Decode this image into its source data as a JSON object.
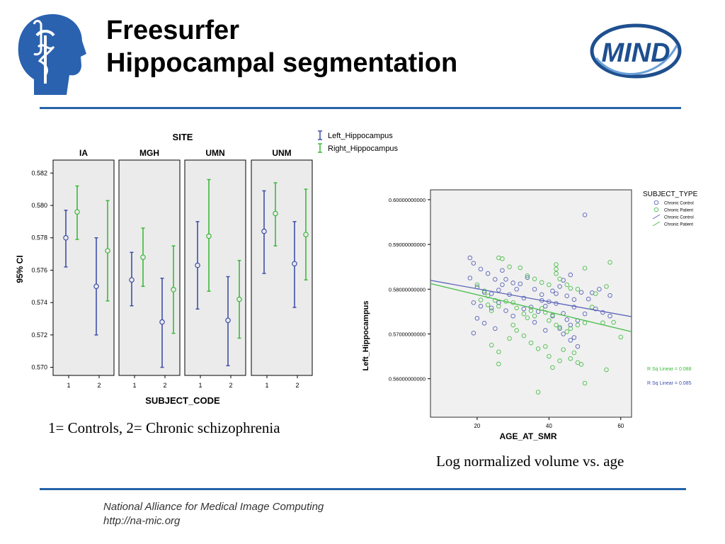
{
  "slide": {
    "title_line1": "Freesurfer",
    "title_line2": "Hippocampal segmentation",
    "logo_text": "MIND",
    "caption_left": "1= Controls, 2= Chronic schizophrenia",
    "caption_right": "Log normalized volume vs. age",
    "footer_line1": "National Alliance for Medical Image Computing",
    "footer_line2": "http://na-mic.org",
    "accent_color": "#2563a9"
  },
  "chart_data": [
    {
      "type": "errorbar",
      "title": "SITE",
      "xlabel": "SUBJECT_CODE",
      "ylabel": "95% CI",
      "ylim": [
        0.5695,
        0.5828
      ],
      "yticks": [
        0.57,
        0.572,
        0.574,
        0.576,
        0.578,
        0.58,
        0.582
      ],
      "ytick_labels": [
        "0.570",
        "0.572",
        "0.574",
        "0.576",
        "0.578",
        "0.580",
        "0.582"
      ],
      "categories": [
        "1",
        "2"
      ],
      "legend_position": "top-right",
      "series_names": [
        "Left_Hippocampus",
        "Right_Hippocampus"
      ],
      "series_colors": [
        "#3f4fa8",
        "#3db83d"
      ],
      "panels": [
        {
          "name": "IA",
          "left": [
            {
              "mean": 0.578,
              "lo": 0.5762,
              "hi": 0.5797
            },
            {
              "mean": 0.575,
              "lo": 0.572,
              "hi": 0.578
            }
          ],
          "right": [
            {
              "mean": 0.5796,
              "lo": 0.5779,
              "hi": 0.5812
            },
            {
              "mean": 0.5772,
              "lo": 0.5741,
              "hi": 0.5803
            }
          ]
        },
        {
          "name": "MGH",
          "left": [
            {
              "mean": 0.5754,
              "lo": 0.5738,
              "hi": 0.5771
            },
            {
              "mean": 0.5728,
              "lo": 0.57,
              "hi": 0.5755
            }
          ],
          "right": [
            {
              "mean": 0.5768,
              "lo": 0.575,
              "hi": 0.5786
            },
            {
              "mean": 0.5748,
              "lo": 0.5721,
              "hi": 0.5775
            }
          ]
        },
        {
          "name": "UMN",
          "left": [
            {
              "mean": 0.5763,
              "lo": 0.5736,
              "hi": 0.579
            },
            {
              "mean": 0.5729,
              "lo": 0.5701,
              "hi": 0.5756
            }
          ],
          "right": [
            {
              "mean": 0.5781,
              "lo": 0.5747,
              "hi": 0.5816
            },
            {
              "mean": 0.5742,
              "lo": 0.5718,
              "hi": 0.5766
            }
          ]
        },
        {
          "name": "UNM",
          "left": [
            {
              "mean": 0.5784,
              "lo": 0.5758,
              "hi": 0.5809
            },
            {
              "mean": 0.5764,
              "lo": 0.5737,
              "hi": 0.579
            }
          ],
          "right": [
            {
              "mean": 0.5795,
              "lo": 0.5775,
              "hi": 0.5814
            },
            {
              "mean": 0.5782,
              "lo": 0.5754,
              "hi": 0.581
            }
          ]
        }
      ]
    },
    {
      "type": "scatter",
      "xlabel": "AGE_AT_SMR",
      "ylabel": "Left_Hippocampus",
      "xlim": [
        7,
        63
      ],
      "ylim": [
        0.5514,
        0.6022
      ],
      "xticks": [
        20,
        40,
        60
      ],
      "yticks": [
        0.56,
        0.57,
        0.58,
        0.59,
        0.6
      ],
      "ytick_labels": [
        "0.56000000000",
        "0.57000000000",
        "0.58000000000",
        "0.59000000000",
        "0.60000000000"
      ],
      "legend_title": "SUBJECT_TYPE",
      "legend_position": "right",
      "legend_items": [
        "Chronic Control",
        "Chronic Patient",
        "Chronic Control",
        "Chronic Patient"
      ],
      "r2_labels": [
        {
          "text": "R Sq Linear = 0.088",
          "color": "#3db83d"
        },
        {
          "text": "R Sq Linear = 0.085",
          "color": "#3f4fa8"
        }
      ],
      "series": [
        {
          "name": "Chronic Control",
          "color": "#5b64b8",
          "fit": {
            "intercept": 0.583,
            "slope": -0.000145
          },
          "points": [
            [
              18,
              0.587
            ],
            [
              19,
              0.5858
            ],
            [
              21,
              0.5845
            ],
            [
              23,
              0.5835
            ],
            [
              25,
              0.5822
            ],
            [
              27,
              0.5842
            ],
            [
              28,
              0.5822
            ],
            [
              30,
              0.5814
            ],
            [
              31,
              0.58
            ],
            [
              18,
              0.5825
            ],
            [
              20,
              0.5805
            ],
            [
              22,
              0.5793
            ],
            [
              24,
              0.579
            ],
            [
              26,
              0.5798
            ],
            [
              29,
              0.5788
            ],
            [
              32,
              0.5812
            ],
            [
              34,
              0.5826
            ],
            [
              36,
              0.58
            ],
            [
              38,
              0.5788
            ],
            [
              40,
              0.5772
            ],
            [
              41,
              0.5796
            ],
            [
              43,
              0.5806
            ],
            [
              44,
              0.582
            ],
            [
              46,
              0.5832
            ],
            [
              45,
              0.5785
            ],
            [
              47,
              0.5777
            ],
            [
              49,
              0.5793
            ],
            [
              51,
              0.5778
            ],
            [
              52,
              0.5792
            ],
            [
              54,
              0.58
            ],
            [
              57,
              0.5786
            ],
            [
              19,
              0.577
            ],
            [
              21,
              0.5762
            ],
            [
              24,
              0.5758
            ],
            [
              26,
              0.577
            ],
            [
              28,
              0.5752
            ],
            [
              30,
              0.574
            ],
            [
              33,
              0.5756
            ],
            [
              35,
              0.576
            ],
            [
              37,
              0.575
            ],
            [
              39,
              0.5762
            ],
            [
              41,
              0.574
            ],
            [
              42,
              0.5768
            ],
            [
              44,
              0.5746
            ],
            [
              45,
              0.5732
            ],
            [
              46,
              0.572
            ],
            [
              48,
              0.573
            ],
            [
              50,
              0.5745
            ],
            [
              53,
              0.5756
            ],
            [
              55,
              0.5748
            ],
            [
              57,
              0.574
            ],
            [
              20,
              0.5735
            ],
            [
              22,
              0.5724
            ],
            [
              25,
              0.5712
            ],
            [
              36,
              0.5726
            ],
            [
              39,
              0.5708
            ],
            [
              43,
              0.5712
            ],
            [
              44,
              0.57
            ],
            [
              46,
              0.5686
            ],
            [
              47,
              0.5692
            ],
            [
              48,
              0.5672
            ],
            [
              19,
              0.5702
            ],
            [
              50,
              0.5966
            ],
            [
              47,
              0.576
            ],
            [
              42,
              0.579
            ],
            [
              38,
              0.5775
            ],
            [
              33,
              0.578
            ],
            [
              27,
              0.581
            ]
          ]
        },
        {
          "name": "Chronic Patient",
          "color": "#4cbf4c",
          "fit": {
            "intercept": 0.5826,
            "slope": -0.000192
          },
          "points": [
            [
              20,
              0.581
            ],
            [
              22,
              0.5796
            ],
            [
              23,
              0.5785
            ],
            [
              25,
              0.5775
            ],
            [
              26,
              0.587
            ],
            [
              27,
              0.5868
            ],
            [
              29,
              0.585
            ],
            [
              32,
              0.5848
            ],
            [
              34,
              0.583
            ],
            [
              36,
              0.5823
            ],
            [
              38,
              0.5815
            ],
            [
              40,
              0.581
            ],
            [
              42,
              0.5855
            ],
            [
              42,
              0.5845
            ],
            [
              42,
              0.5835
            ],
            [
              43,
              0.5823
            ],
            [
              45,
              0.581
            ],
            [
              46,
              0.5802
            ],
            [
              48,
              0.58
            ],
            [
              50,
              0.5847
            ],
            [
              53,
              0.579
            ],
            [
              56,
              0.5806
            ],
            [
              57,
              0.586
            ],
            [
              21,
              0.5776
            ],
            [
              23,
              0.5765
            ],
            [
              24,
              0.5752
            ],
            [
              26,
              0.5762
            ],
            [
              28,
              0.5773
            ],
            [
              30,
              0.577
            ],
            [
              31,
              0.5758
            ],
            [
              33,
              0.5745
            ],
            [
              35,
              0.5752
            ],
            [
              36,
              0.574
            ],
            [
              38,
              0.5757
            ],
            [
              39,
              0.5748
            ],
            [
              40,
              0.573
            ],
            [
              41,
              0.5742
            ],
            [
              42,
              0.572
            ],
            [
              43,
              0.5715
            ],
            [
              45,
              0.5705
            ],
            [
              46,
              0.5712
            ],
            [
              48,
              0.572
            ],
            [
              50,
              0.5725
            ],
            [
              52,
              0.576
            ],
            [
              55,
              0.5725
            ],
            [
              58,
              0.5726
            ],
            [
              60,
              0.5693
            ],
            [
              24,
              0.5675
            ],
            [
              26,
              0.566
            ],
            [
              29,
              0.569
            ],
            [
              31,
              0.5708
            ],
            [
              33,
              0.5696
            ],
            [
              35,
              0.568
            ],
            [
              37,
              0.5667
            ],
            [
              39,
              0.5672
            ],
            [
              40,
              0.565
            ],
            [
              41,
              0.5625
            ],
            [
              43,
              0.564
            ],
            [
              44,
              0.5665
            ],
            [
              46,
              0.5645
            ],
            [
              47,
              0.5658
            ],
            [
              48,
              0.5636
            ],
            [
              49,
              0.5632
            ],
            [
              50,
              0.559
            ],
            [
              56,
              0.562
            ],
            [
              37,
              0.557
            ],
            [
              26,
              0.5633
            ],
            [
              30,
              0.572
            ],
            [
              34,
              0.5736
            ]
          ]
        }
      ]
    }
  ]
}
